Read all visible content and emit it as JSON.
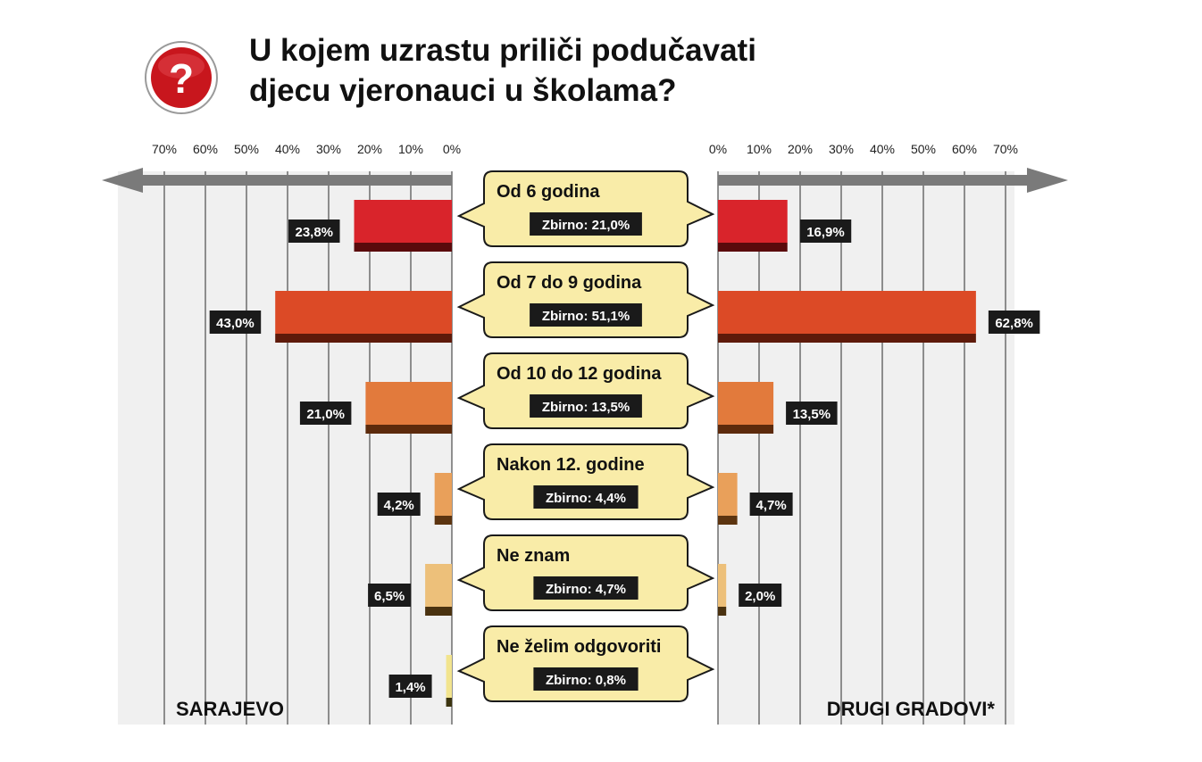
{
  "title_line1": "U kojem uzrastu priliči podučavati",
  "title_line2": "djecu vjeronauci u školama?",
  "icon": "question-mark-icon",
  "colors": {
    "accent_red": "#c8161d",
    "bubble_fill": "#f9eca8",
    "grid_bg": "#f0f0f0",
    "arrow": "#7a7a7a"
  },
  "chart_data": {
    "type": "bar",
    "orientation": "horizontal-butterfly",
    "tick_labels": [
      "0%",
      "10%",
      "20%",
      "30%",
      "40%",
      "50%",
      "60%",
      "70%"
    ],
    "xlim": [
      0,
      70
    ],
    "grid": true,
    "left_label": "SARAJEVO",
    "right_label": "DRUGI GRADOVI*",
    "categories": [
      {
        "label": "Od 6 godina",
        "summary": "Zbirno: 21,0%",
        "left": 23.8,
        "right": 16.9,
        "left_text": "23,8%",
        "right_text": "16,9%",
        "color": "#d9242b",
        "shade": "#5a0a0c"
      },
      {
        "label": "Od 7 do 9 godina",
        "summary": "Zbirno: 51,1%",
        "left": 43.0,
        "right": 62.8,
        "left_text": "43,0%",
        "right_text": "62,8%",
        "color": "#dc4a26",
        "shade": "#5e1a0a"
      },
      {
        "label": "Od 10 do 12 godina",
        "summary": "Zbirno: 13,5%",
        "left": 21.0,
        "right": 13.5,
        "left_text": "21,0%",
        "right_text": "13,5%",
        "color": "#e27a3c",
        "shade": "#5c2a0c"
      },
      {
        "label": "Nakon 12. godine",
        "summary": "Zbirno: 4,4%",
        "left": 4.2,
        "right": 4.7,
        "left_text": "4,2%",
        "right_text": "4,7%",
        "color": "#e9a05a",
        "shade": "#5c3410"
      },
      {
        "label": "Ne znam",
        "summary": "Zbirno: 4,7%",
        "left": 6.5,
        "right": 2.0,
        "left_text": "6,5%",
        "right_text": "2,0%",
        "color": "#edc07a",
        "shade": "#4a3210"
      },
      {
        "label": "Ne želim odgovoriti",
        "summary": "Zbirno: 0,8%",
        "left": 1.4,
        "right": 0,
        "left_text": "1,4%",
        "right_text": "",
        "color": "#f2e48e",
        "shade": "#3c3410"
      }
    ]
  }
}
